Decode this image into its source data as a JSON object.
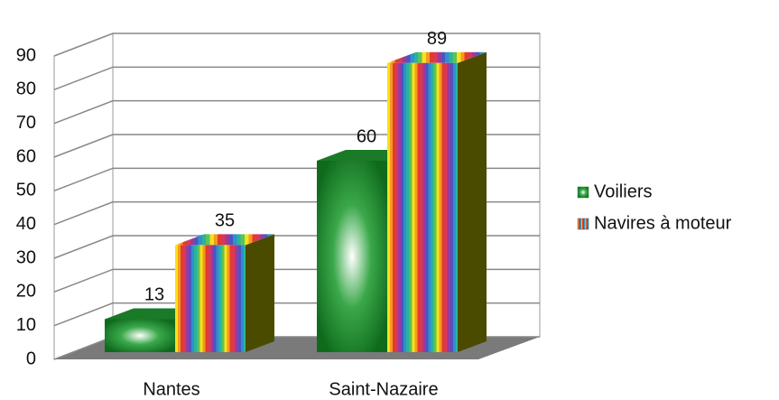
{
  "chart_data": {
    "type": "bar3d",
    "categories": [
      "Nantes",
      "Saint-Nazaire"
    ],
    "series": [
      {
        "name": "Voiliers",
        "color": "#1f8f2f",
        "values": [
          13,
          60
        ]
      },
      {
        "name": "Navires à moteur",
        "colors": [
          "#f7e11a",
          "#f59a1f",
          "#e23b2e",
          "#d8385a",
          "#9c3a9a",
          "#4a56c2",
          "#2f8fd0",
          "#2bb39a",
          "#5cc25a"
        ],
        "values": [
          35,
          89
        ]
      }
    ],
    "ylim": [
      0,
      90
    ],
    "yticks": [
      0,
      10,
      20,
      30,
      40,
      50,
      60,
      70,
      80,
      90
    ],
    "grid": true,
    "legend": "right"
  }
}
